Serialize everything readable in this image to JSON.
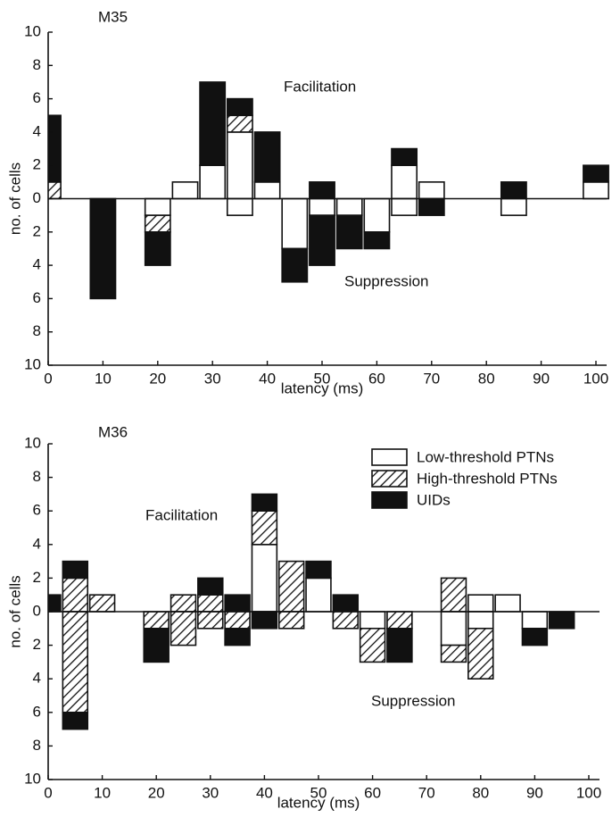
{
  "chart_data": [
    {
      "type": "diverging-stacked-bar",
      "title": "M35",
      "x_label": "latency (ms)",
      "y_label": "no. of cells",
      "annotations": [
        "Facilitation",
        "Suppression"
      ],
      "x": [
        0,
        5,
        10,
        15,
        20,
        25,
        30,
        35,
        40,
        45,
        50,
        55,
        60,
        65,
        70,
        75,
        80,
        85,
        90,
        95,
        100
      ],
      "xlim": [
        0,
        100
      ],
      "xticks": [
        0,
        10,
        20,
        30,
        40,
        50,
        60,
        70,
        80,
        90,
        100
      ],
      "ylim": [
        -10,
        10
      ],
      "yticks": [
        {
          "value": -10,
          "label": "10"
        },
        {
          "value": -8,
          "label": "8"
        },
        {
          "value": -6,
          "label": "6"
        },
        {
          "value": -4,
          "label": "4"
        },
        {
          "value": -2,
          "label": "2"
        },
        0,
        2,
        4,
        6,
        8,
        10
      ],
      "legend": false,
      "series": [
        {
          "color": "#ffffff",
          "hatch": false,
          "values": [
            0,
            0,
            0,
            0,
            0,
            1,
            2,
            4,
            1,
            0,
            0,
            0,
            0,
            2,
            1,
            0,
            0,
            0,
            0,
            0,
            1
          ],
          "suppression": [
            0,
            0,
            0,
            0,
            -1,
            0,
            0,
            -1,
            0,
            -3,
            -1,
            -1,
            -2,
            -1,
            0,
            0,
            0,
            -1,
            0,
            0,
            0
          ]
        },
        {
          "color": "#ffffff",
          "hatch": true,
          "values": [
            1,
            0,
            0,
            0,
            0,
            0,
            0,
            1,
            0,
            0,
            0,
            0,
            0,
            0,
            0,
            0,
            0,
            0,
            0,
            0,
            0
          ],
          "suppression": [
            0,
            0,
            0,
            0,
            -1,
            0,
            0,
            0,
            0,
            0,
            0,
            0,
            0,
            0,
            0,
            0,
            0,
            0,
            0,
            0,
            0
          ]
        },
        {
          "color": "#111111",
          "hatch": false,
          "values": [
            4,
            0,
            0,
            0,
            0,
            0,
            5,
            1,
            3,
            0,
            1,
            0,
            0,
            1,
            0,
            0,
            0,
            1,
            0,
            0,
            1
          ],
          "suppression": [
            0,
            0,
            -6,
            0,
            -2,
            0,
            0,
            0,
            0,
            -2,
            -3,
            -2,
            -1,
            0,
            -1,
            0,
            0,
            0,
            0,
            0,
            0
          ]
        }
      ]
    },
    {
      "type": "diverging-stacked-bar",
      "title": "M36",
      "x_label": "latency (ms)",
      "y_label": "no. of cells",
      "annotations": [
        "Facilitation",
        "Suppression"
      ],
      "x": [
        0,
        5,
        10,
        15,
        20,
        25,
        30,
        35,
        40,
        45,
        50,
        55,
        60,
        65,
        70,
        75,
        80,
        85,
        90,
        95,
        100
      ],
      "xlim": [
        0,
        100
      ],
      "xticks": [
        0,
        10,
        20,
        30,
        40,
        50,
        60,
        70,
        80,
        90,
        100
      ],
      "ylim": [
        -10,
        10
      ],
      "yticks": [
        {
          "value": -10,
          "label": "10"
        },
        {
          "value": -8,
          "label": "8"
        },
        {
          "value": -6,
          "label": "6"
        },
        {
          "value": -4,
          "label": "4"
        },
        {
          "value": -2,
          "label": "2"
        },
        0,
        2,
        4,
        6,
        8,
        10
      ],
      "legend": "upper right",
      "series": [
        {
          "name": "Low-threshold PTNs",
          "color": "#ffffff",
          "hatch": false,
          "values": [
            0,
            0,
            0,
            0,
            0,
            0,
            0,
            0,
            4,
            0,
            2,
            0,
            0,
            0,
            0,
            0,
            1,
            1,
            0,
            0,
            0
          ],
          "suppression": [
            0,
            0,
            0,
            0,
            0,
            0,
            0,
            0,
            0,
            0,
            0,
            0,
            -1,
            0,
            0,
            -2,
            -1,
            0,
            -1,
            0,
            0
          ]
        },
        {
          "name": "High-threshold PTNs",
          "color": "#ffffff",
          "hatch": true,
          "values": [
            0,
            2,
            1,
            0,
            0,
            1,
            1,
            0,
            2,
            3,
            0,
            0,
            0,
            0,
            0,
            2,
            0,
            0,
            0,
            0,
            0
          ],
          "suppression": [
            0,
            -6,
            0,
            0,
            -1,
            -2,
            -1,
            -1,
            0,
            -1,
            0,
            -1,
            -2,
            -1,
            0,
            -1,
            -3,
            0,
            0,
            0,
            0
          ]
        },
        {
          "name": "UIDs",
          "color": "#111111",
          "hatch": false,
          "values": [
            1,
            1,
            0,
            0,
            0,
            0,
            1,
            1,
            1,
            0,
            1,
            1,
            0,
            0,
            0,
            0,
            0,
            0,
            0,
            0,
            0
          ],
          "suppression": [
            0,
            -1,
            0,
            0,
            -2,
            0,
            0,
            -1,
            -1,
            0,
            0,
            0,
            0,
            -2,
            0,
            0,
            0,
            0,
            -1,
            -1,
            0
          ]
        }
      ]
    }
  ]
}
